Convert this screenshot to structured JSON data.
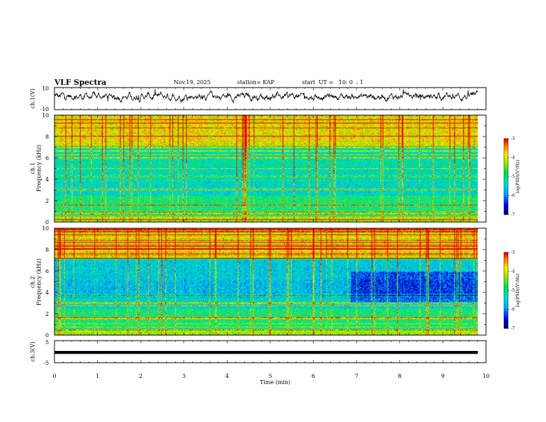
{
  "header": {
    "title": "VLF Spectra",
    "date": "Nov.19, 2025",
    "station": "station= KAP",
    "start": "start  UT =   10: 0  : 1"
  },
  "chart_data": [
    {
      "type": "line",
      "name": "ch1-waveform",
      "ylabel": "ch.1(V)",
      "ylim": [
        -10,
        10
      ],
      "yticklabels": [
        "10",
        "-10"
      ],
      "xlim": [
        0,
        10
      ],
      "description_series": "noisy waveform centred slightly above 0 V, amplitude roughly +/-5 V, spanning 0 to 9.85 min"
    },
    {
      "type": "heatmap",
      "name": "ch1-spectrogram",
      "ylabel": "ch.1\nFrequency (kHz)",
      "ylabel_line1": "ch.1",
      "ylabel_line2": "Frequency (kHz)",
      "ylim": [
        0,
        10
      ],
      "yticklabels": [
        "0",
        "2",
        "4",
        "6",
        "8",
        "10"
      ],
      "xlim": [
        0,
        9.85
      ],
      "colorbar": {
        "label": "log(PSD)(V²/Hz)",
        "ticks": [
          "-3",
          "-4",
          "-5",
          "-6",
          "-7"
        ],
        "range": [
          -7,
          -3
        ]
      }
    },
    {
      "type": "heatmap",
      "name": "ch2-spectrogram",
      "ylabel": "ch.2\nFrequency (kHz)",
      "ylabel_line1": "ch.2",
      "ylabel_line2": "Frequency (kHz)",
      "ylim": [
        0,
        10
      ],
      "yticklabels": [
        "0",
        "2",
        "4",
        "6",
        "8",
        "10"
      ],
      "xlim": [
        0,
        9.85
      ],
      "colorbar": {
        "label": "log(PSD)(V²/Hz)",
        "ticks": [
          "-3",
          "-4",
          "-5",
          "-6",
          "-7"
        ],
        "range": [
          -7,
          -3
        ]
      }
    },
    {
      "type": "line",
      "name": "ch3-waveform",
      "ylabel": "ch.3(V)",
      "ylim": [
        -5,
        5
      ],
      "yticklabels": [
        "5",
        "-5"
      ],
      "xlim": [
        0,
        10
      ],
      "xlabel": "Time (min)",
      "xticklabels": [
        "0",
        "1",
        "2",
        "3",
        "4",
        "5",
        "6",
        "7",
        "8",
        "9",
        "10"
      ],
      "description_series": "dense oscillation between about -1 and +0.3 V, spanning 0 to 9.85 min"
    }
  ]
}
